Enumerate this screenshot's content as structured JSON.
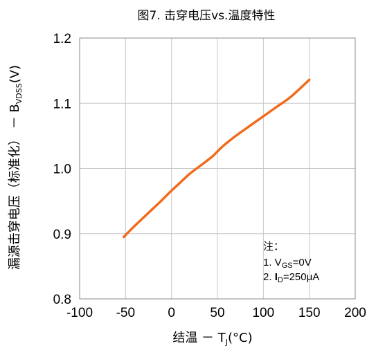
{
  "chart_data": {
    "type": "line",
    "title": "图7. 击穿电压vs.温度特性",
    "xlabel": {
      "prefix": "结温 － T",
      "sub": "J",
      "suffix": "(°C)"
    },
    "ylabel": {
      "prefix": "漏源击穿电压（标准化） － B",
      "sub": "VDSS",
      "suffix": "(V)"
    },
    "xlim": [
      -100,
      200
    ],
    "ylim": [
      0.8,
      1.2
    ],
    "x_ticks": [
      -100,
      -50,
      0,
      50,
      100,
      150,
      200
    ],
    "x_tick_labels": [
      "-100",
      "-50",
      "0",
      "50",
      "100",
      "150",
      "200"
    ],
    "y_ticks": [
      0.8,
      0.9,
      1.0,
      1.1,
      1.2
    ],
    "y_tick_labels": [
      "0.8",
      "0.9",
      "1.0",
      "1.1",
      "1.2"
    ],
    "grid": true,
    "series": [
      {
        "color": "#f26b1d",
        "x": [
          -52,
          -40,
          -25,
          -10,
          0,
          10,
          20,
          35,
          45,
          55,
          70,
          85,
          100,
          115,
          130,
          150
        ],
        "y": [
          0.895,
          0.912,
          0.932,
          0.952,
          0.966,
          0.979,
          0.992,
          1.008,
          1.019,
          1.033,
          1.05,
          1.065,
          1.08,
          1.095,
          1.11,
          1.136
        ]
      }
    ],
    "annotation": {
      "title": "注：",
      "line1": {
        "prefix": "1. V",
        "sub": "GS",
        "suffix": "=0V"
      },
      "line2": {
        "prefix": "2. ",
        "bold": "I",
        "sub": "D",
        "suffix": "=250μA"
      }
    }
  }
}
